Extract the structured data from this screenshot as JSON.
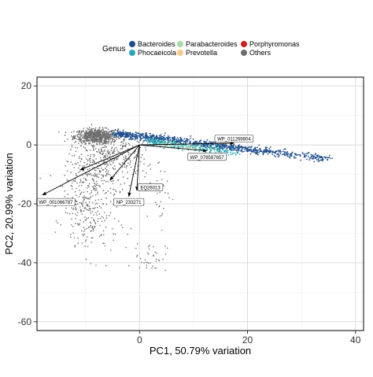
{
  "chart_data": {
    "type": "scatter",
    "xlabel": "PC1, 50.79% variation",
    "ylabel": "PC2, 20.99% variation",
    "xlim": [
      -19,
      41.5
    ],
    "ylim": [
      -63,
      23
    ],
    "x_ticks": [
      0,
      20,
      40
    ],
    "y_ticks": [
      20,
      0,
      -20,
      -40,
      -60
    ],
    "x_tick_labels": [
      "0",
      "20",
      "40"
    ],
    "y_tick_labels": [
      "20",
      "0",
      "-20",
      "-40",
      "-60"
    ],
    "grid": true,
    "legend": {
      "title": "Genus",
      "position": "top",
      "entries": [
        {
          "name": "Bacteroides",
          "color": "#1f4e8c"
        },
        {
          "name": "Parabacteroides",
          "color": "#a8dba8"
        },
        {
          "name": "Porphyromonas",
          "color": "#cc1f1f"
        },
        {
          "name": "Phocaeicola",
          "color": "#2aa8b8"
        },
        {
          "name": "Prevotella",
          "color": "#f7c98b"
        },
        {
          "name": "Others",
          "color": "#6e6e6e"
        }
      ]
    },
    "series": [
      {
        "name": "Others",
        "color": "#6e6e6e",
        "clusters": [
          {
            "x": -8,
            "y": 3,
            "sx": 2.0,
            "sy": 1.2,
            "n": 700
          },
          {
            "x": -6,
            "y": -2,
            "sx": 3.0,
            "sy": 3.0,
            "n": 220
          },
          {
            "x": -9,
            "y": -12,
            "sx": 2.5,
            "sy": 4.0,
            "n": 160
          },
          {
            "x": -5,
            "y": -8,
            "sx": 3.5,
            "sy": 3.5,
            "n": 120
          },
          {
            "x": -9,
            "y": -26,
            "sx": 2.5,
            "sy": 6.0,
            "n": 170
          },
          {
            "x": -12,
            "y": -19,
            "sx": 1.5,
            "sy": 2.0,
            "n": 40
          },
          {
            "x": 2,
            "y": -38,
            "sx": 1.5,
            "sy": 2.5,
            "n": 40
          },
          {
            "x": 4,
            "y": -15,
            "sx": 1.0,
            "sy": 6.0,
            "n": 30
          }
        ]
      },
      {
        "name": "Bacteroides",
        "color": "#1f4e8c",
        "band": {
          "x": [
            -4,
            35
          ],
          "y": [
            4,
            -4.5
          ],
          "width": 1.2,
          "n": 900
        }
      },
      {
        "name": "Phocaeicola",
        "color": "#2aa8b8",
        "band": {
          "x": [
            2,
            18
          ],
          "y": [
            1.5,
            -2.5
          ],
          "width": 1.2,
          "n": 260
        }
      },
      {
        "name": "Parabacteroides",
        "color": "#a8dba8",
        "band": {
          "x": [
            4,
            14
          ],
          "y": [
            0.8,
            -1.5
          ],
          "width": 0.8,
          "n": 60
        }
      }
    ],
    "loadings": [
      {
        "label": "WP_011269804",
        "x": 17.5,
        "y": 0.6,
        "lx": 17.5,
        "ly": 2.0
      },
      {
        "label": "WP_078587657",
        "x": 12.5,
        "y": -2.0,
        "lx": 12.5,
        "ly": -4.2
      },
      {
        "label": "WP_001066787",
        "x": -18.0,
        "y": -17.0,
        "lx": -15.5,
        "ly": -19.5
      },
      {
        "label": "NP_233271",
        "x": -2.0,
        "y": -17.5,
        "lx": -2.0,
        "ly": -19.5
      },
      {
        "label": "EQ26013",
        "x": -0.5,
        "y": -15.5,
        "lx": 2.0,
        "ly": -14.5
      },
      {
        "label": "",
        "x": -11.0,
        "y": -8.5,
        "lx": -8.0,
        "ly": -7.0
      },
      {
        "label": "",
        "x": -5.5,
        "y": -12.0,
        "lx": -6.0,
        "ly": -9.0
      }
    ]
  }
}
